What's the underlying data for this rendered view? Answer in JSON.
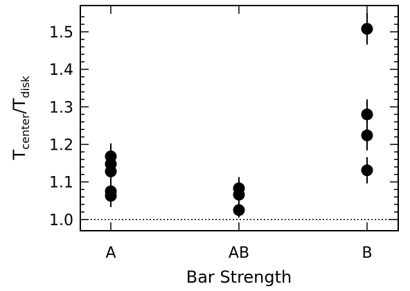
{
  "chart_data": {
    "type": "scatter",
    "categories": [
      "A",
      "AB",
      "B"
    ],
    "xlabel": "Bar Strength",
    "ylabel": {
      "main1": "T",
      "sub1": "center",
      "sep": "/",
      "main2": "T",
      "sub2": "disk"
    },
    "ylim": [
      0.97,
      1.57
    ],
    "yticks": [
      1.0,
      1.1,
      1.2,
      1.3,
      1.4,
      1.5
    ],
    "ytick_labels": [
      "1.0",
      "1.1",
      "1.2",
      "1.3",
      "1.4",
      "1.5"
    ],
    "reference_line": {
      "y": 1.0,
      "style": "dotted"
    },
    "points": [
      {
        "category": "A",
        "y": 1.168,
        "err": 0.035
      },
      {
        "category": "A",
        "y": 1.148,
        "err": 0.035
      },
      {
        "category": "A",
        "y": 1.128,
        "err": 0.035
      },
      {
        "category": "A",
        "y": 1.075,
        "err": 0.03
      },
      {
        "category": "A",
        "y": 1.063,
        "err": 0.03
      },
      {
        "category": "AB",
        "y": 1.083,
        "err": 0.03
      },
      {
        "category": "AB",
        "y": 1.066,
        "err": 0.03
      },
      {
        "category": "AB",
        "y": 1.025,
        "err": 0.02
      },
      {
        "category": "B",
        "y": 1.508,
        "err": 0.042
      },
      {
        "category": "B",
        "y": 1.28,
        "err": 0.04
      },
      {
        "category": "B",
        "y": 1.224,
        "err": 0.04
      },
      {
        "category": "B",
        "y": 1.131,
        "err": 0.035
      }
    ],
    "grid": false,
    "marker_color": "#000000"
  }
}
